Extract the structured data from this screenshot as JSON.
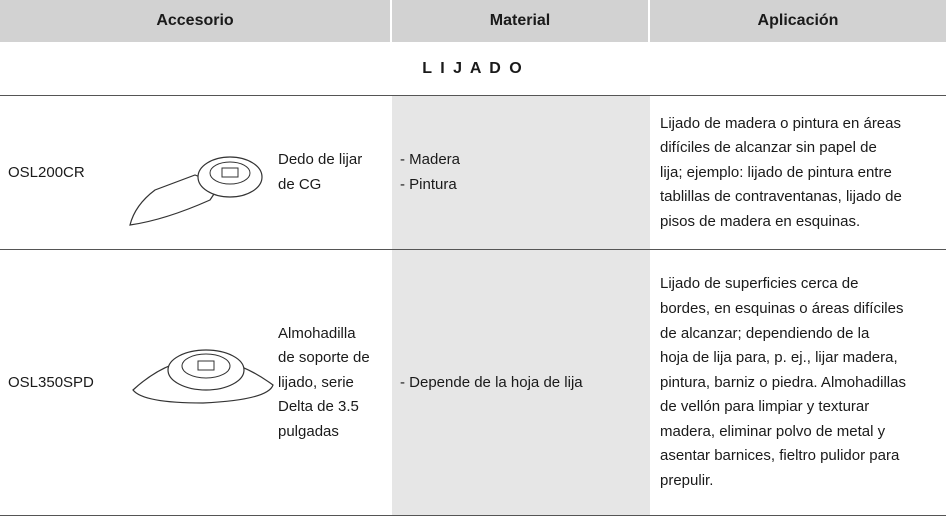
{
  "table": {
    "header": [
      "Accesorio",
      "Material",
      "Aplicación"
    ],
    "section": "L I J A D O",
    "rows": [
      {
        "code": "OSL200CR",
        "name": [
          "Dedo de lijar",
          "de CG"
        ],
        "material": [
          "- Madera",
          "- Pintura"
        ],
        "application": [
          "Lijado de madera o pintura en áreas",
          "difíciles de alcanzar sin papel de",
          "lija; ejemplo: lijado de pintura entre",
          "tablillas de contraventanas, lijado de",
          "pisos de madera en esquinas."
        ]
      },
      {
        "code": "OSL350SPD",
        "name": [
          "Almohadilla",
          "de soporte de",
          "lijado, serie",
          "Delta de 3.5",
          "pulgadas"
        ],
        "material": [
          "- Depende de la hoja de lija"
        ],
        "application": [
          "Lijado de superficies cerca de",
          "bordes, en esquinas o áreas difíciles",
          "de alcanzar; dependiendo de la",
          "hoja de lija para, p. ej., lijar madera,",
          "pintura, barniz o piedra. Almohadillas",
          "de vellón para limpiar y texturar",
          "madera, eliminar polvo de metal y",
          "asentar barnices, fieltro pulidor para",
          "prepulir."
        ]
      }
    ]
  }
}
